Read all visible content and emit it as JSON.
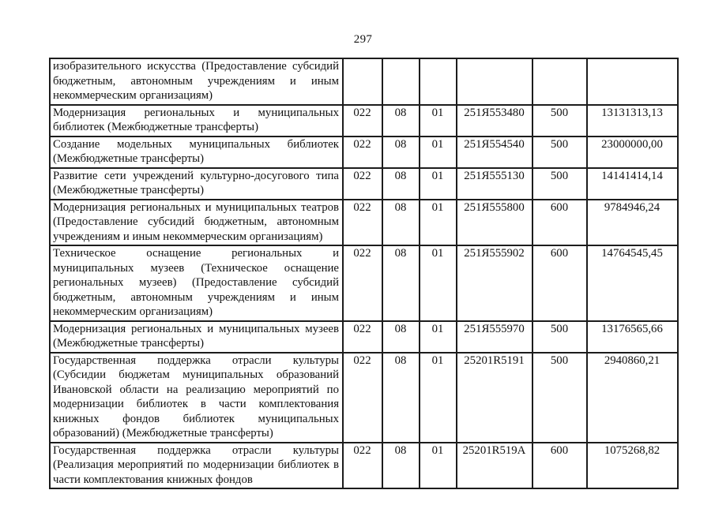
{
  "page": {
    "number": "297"
  },
  "table": {
    "rows": [
      {
        "description": "изобразительного искусства (Предоставление субсидий бюджетным, автономным учреждениям и иным некоммерческим организациям)",
        "dept": "",
        "section": "",
        "subsection": "",
        "target": "",
        "type": "",
        "amount": ""
      },
      {
        "description": "Модернизация региональных и муниципальных библиотек (Межбюджетные трансферты)",
        "dept": "022",
        "section": "08",
        "subsection": "01",
        "target": "251Я553480",
        "type": "500",
        "amount": "13131313,13"
      },
      {
        "description": "Создание модельных муниципальных библиотек (Межбюджетные трансферты)",
        "dept": "022",
        "section": "08",
        "subsection": "01",
        "target": "251Я554540",
        "type": "500",
        "amount": "23000000,00"
      },
      {
        "description": "Развитие сети учреждений культурно-досугового типа (Межбюджетные трансферты)",
        "dept": "022",
        "section": "08",
        "subsection": "01",
        "target": "251Я555130",
        "type": "500",
        "amount": "14141414,14"
      },
      {
        "description": "Модернизация региональных и муниципальных театров (Предоставление субсидий бюджетным, автономным учреждениям и иным некоммерческим организациям)",
        "dept": "022",
        "section": "08",
        "subsection": "01",
        "target": "251Я555800",
        "type": "600",
        "amount": "9784946,24"
      },
      {
        "description": "Техническое оснащение региональных и муниципальных музеев (Техническое оснащение региональных музеев) (Предоставление субсидий бюджетным, автономным учреждениям и иным некоммерческим организациям)",
        "dept": "022",
        "section": "08",
        "subsection": "01",
        "target": "251Я555902",
        "type": "600",
        "amount": "14764545,45"
      },
      {
        "description": "Модернизация региональных и муниципальных музеев (Межбюджетные трансферты)",
        "dept": "022",
        "section": "08",
        "subsection": "01",
        "target": "251Я555970",
        "type": "500",
        "amount": "13176565,66"
      },
      {
        "description": "Государственная поддержка отрасли культуры (Субсидии бюджетам муниципальных образований Ивановской области на реализацию мероприятий по модернизации библиотек в части комплектования книжных фондов библиотек муниципальных образований) (Межбюджетные трансферты)",
        "dept": "022",
        "section": "08",
        "subsection": "01",
        "target": "25201R5191",
        "type": "500",
        "amount": "2940860,21"
      },
      {
        "description": "Государственная поддержка отрасли культуры (Реализация мероприятий по модернизации библиотек в части комплектования книжных фондов",
        "dept": "022",
        "section": "08",
        "subsection": "01",
        "target": "25201R519A",
        "type": "600",
        "amount": "1075268,82"
      }
    ]
  }
}
